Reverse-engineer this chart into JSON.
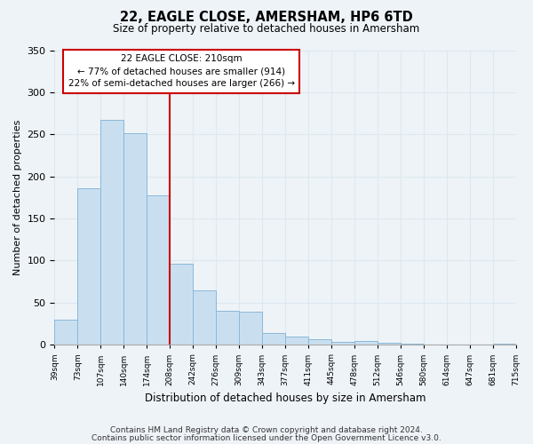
{
  "title": "22, EAGLE CLOSE, AMERSHAM, HP6 6TD",
  "subtitle": "Size of property relative to detached houses in Amersham",
  "xlabel": "Distribution of detached houses by size in Amersham",
  "ylabel": "Number of detached properties",
  "footer_lines": [
    "Contains HM Land Registry data © Crown copyright and database right 2024.",
    "Contains public sector information licensed under the Open Government Licence v3.0."
  ],
  "bin_labels": [
    "39sqm",
    "73sqm",
    "107sqm",
    "140sqm",
    "174sqm",
    "208sqm",
    "242sqm",
    "276sqm",
    "309sqm",
    "343sqm",
    "377sqm",
    "411sqm",
    "445sqm",
    "478sqm",
    "512sqm",
    "546sqm",
    "580sqm",
    "614sqm",
    "647sqm",
    "681sqm",
    "715sqm"
  ],
  "bar_values": [
    30,
    186,
    267,
    251,
    178,
    96,
    65,
    40,
    39,
    14,
    10,
    7,
    3,
    5,
    2,
    1,
    0,
    0,
    0,
    1
  ],
  "bar_color": "#c9dff0",
  "bar_edge_color": "#8ab8d8",
  "vline_x_index": 5,
  "vline_color": "#cc0000",
  "ylim": [
    0,
    350
  ],
  "yticks": [
    0,
    50,
    100,
    150,
    200,
    250,
    300,
    350
  ],
  "annotation_title": "22 EAGLE CLOSE: 210sqm",
  "annotation_line2": "← 77% of detached houses are smaller (914)",
  "annotation_line3": "22% of semi-detached houses are larger (266) →",
  "annotation_box_color": "#ffffff",
  "annotation_box_edge_color": "#cc0000",
  "grid_color": "#dce8f0",
  "background_color": "#eef3f8",
  "plot_bg_color": "#eef3f8"
}
